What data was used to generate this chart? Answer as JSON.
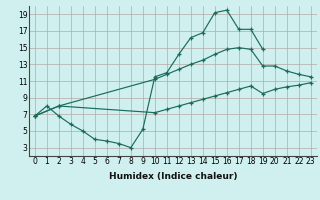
{
  "xlabel": "Humidex (Indice chaleur)",
  "bg_color": "#cff0ee",
  "grid_color": "#b8a8a8",
  "line_color": "#1a6b5a",
  "xlim": [
    -0.5,
    23.5
  ],
  "ylim": [
    2,
    20
  ],
  "xticks": [
    0,
    1,
    2,
    3,
    4,
    5,
    6,
    7,
    8,
    9,
    10,
    11,
    12,
    13,
    14,
    15,
    16,
    17,
    18,
    19,
    20,
    21,
    22,
    23
  ],
  "yticks": [
    3,
    5,
    7,
    9,
    11,
    13,
    15,
    17,
    19
  ],
  "line1_x": [
    0,
    1,
    2,
    3,
    4,
    5,
    6,
    7,
    8,
    9,
    10,
    11,
    12,
    13,
    14,
    15,
    16,
    17,
    18,
    19
  ],
  "line1_y": [
    6.8,
    8.0,
    6.8,
    5.8,
    5.0,
    4.0,
    3.8,
    3.5,
    3.0,
    5.2,
    11.5,
    12.0,
    14.2,
    16.2,
    16.8,
    19.2,
    19.5,
    17.2,
    17.2,
    14.8
  ],
  "line2_x": [
    0,
    2,
    10,
    11,
    12,
    13,
    14,
    15,
    16,
    17,
    18,
    19,
    20,
    21,
    22,
    23
  ],
  "line2_y": [
    6.8,
    8.0,
    11.2,
    11.8,
    12.4,
    13.0,
    13.5,
    14.2,
    14.8,
    15.0,
    14.8,
    12.8,
    12.8,
    12.2,
    11.8,
    11.5
  ],
  "line3_x": [
    0,
    2,
    10,
    11,
    12,
    13,
    14,
    15,
    16,
    17,
    18,
    19,
    20,
    21,
    22,
    23
  ],
  "line3_y": [
    6.8,
    8.0,
    7.2,
    7.6,
    8.0,
    8.4,
    8.8,
    9.2,
    9.6,
    10.0,
    10.4,
    9.5,
    10.0,
    10.3,
    10.5,
    10.8
  ],
  "xlabel_fontsize": 6.5,
  "tick_fontsize": 5.5
}
